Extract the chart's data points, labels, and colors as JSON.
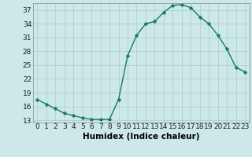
{
  "x": [
    0,
    1,
    2,
    3,
    4,
    5,
    6,
    7,
    8,
    9,
    10,
    11,
    12,
    13,
    14,
    15,
    16,
    17,
    18,
    19,
    20,
    21,
    22,
    23
  ],
  "y": [
    17.5,
    16.5,
    15.5,
    14.5,
    14.0,
    13.5,
    13.2,
    13.1,
    13.2,
    17.5,
    27.0,
    31.5,
    34.0,
    34.5,
    36.5,
    38.0,
    38.2,
    37.5,
    35.5,
    34.0,
    31.5,
    28.5,
    24.5,
    23.5
  ],
  "line_color": "#1a7a6a",
  "marker_color": "#1a7a6a",
  "bg_color": "#cce8e8",
  "grid_color": "#aacccc",
  "xlabel": "Humidex (Indice chaleur)",
  "xlim": [
    -0.5,
    23.5
  ],
  "ylim": [
    12.5,
    38.5
  ],
  "yticks": [
    13,
    16,
    19,
    22,
    25,
    28,
    31,
    34,
    37
  ],
  "xticks": [
    0,
    1,
    2,
    3,
    4,
    5,
    6,
    7,
    8,
    9,
    10,
    11,
    12,
    13,
    14,
    15,
    16,
    17,
    18,
    19,
    20,
    21,
    22,
    23
  ],
  "xlabel_fontsize": 7.5,
  "tick_fontsize": 6.5,
  "line_width": 1.0,
  "marker_size": 2.5
}
